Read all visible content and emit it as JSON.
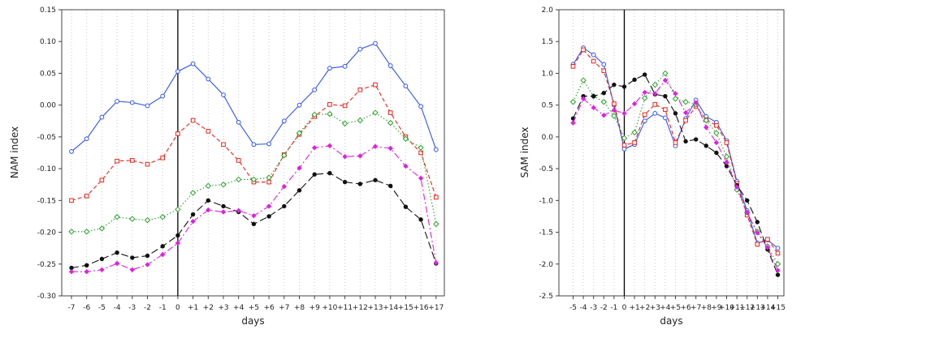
{
  "chart_data": [
    {
      "type": "line",
      "title": "",
      "xlabel": "days",
      "ylabel": "NAM index",
      "ylim": [
        -0.3,
        0.15
      ],
      "yticks": [
        -0.3,
        -0.25,
        -0.2,
        -0.15,
        -0.1,
        -0.05,
        0.0,
        0.05,
        0.1,
        0.15
      ],
      "ytick_labels": [
        "-0.30",
        "-0.25",
        "-0.20",
        "-0.15",
        "-0.10",
        "-0.05",
        "0.00",
        "0.05",
        "0.10",
        "0.15"
      ],
      "categories": [
        "-7",
        "-6",
        "-5",
        "-4",
        "-3",
        "-2",
        "-1",
        "0",
        "+1",
        "+2",
        "+3",
        "+4",
        "+5",
        "+6",
        "+7",
        "+8",
        "+9",
        "+10",
        "+11",
        "+12",
        "+13",
        "+14",
        "+15",
        "+16",
        "+17"
      ],
      "grid": "vertical dotted",
      "vline_at": "0",
      "series": [
        {
          "values": [
            -0.073,
            -0.053,
            -0.019,
            0.006,
            0.004,
            -0.001,
            0.014,
            0.053,
            0.065,
            0.041,
            0.016,
            -0.027,
            -0.062,
            -0.061,
            -0.025,
            0.0,
            0.024,
            0.058,
            0.061,
            0.088,
            0.097,
            0.062,
            0.03,
            -0.002,
            -0.07
          ],
          "color": "#3355ee",
          "marker": "circle-open",
          "dash": "solid"
        },
        {
          "values": [
            -0.15,
            -0.143,
            -0.118,
            -0.088,
            -0.087,
            -0.093,
            -0.083,
            -0.045,
            -0.024,
            -0.041,
            -0.062,
            -0.087,
            -0.121,
            -0.121,
            -0.078,
            -0.046,
            -0.018,
            0.001,
            -0.001,
            0.024,
            0.032,
            -0.012,
            -0.05,
            -0.075,
            -0.145
          ],
          "color": "#e8231c",
          "marker": "square-open",
          "dash": "dashed"
        },
        {
          "values": [
            -0.199,
            -0.199,
            -0.194,
            -0.176,
            -0.179,
            -0.181,
            -0.176,
            -0.164,
            -0.138,
            -0.127,
            -0.125,
            -0.117,
            -0.117,
            -0.114,
            -0.079,
            -0.044,
            -0.015,
            -0.014,
            -0.029,
            -0.024,
            -0.012,
            -0.028,
            -0.053,
            -0.067,
            -0.187
          ],
          "color": "#2aa02a",
          "marker": "diamond-open",
          "dash": "dotted"
        },
        {
          "values": [
            -0.256,
            -0.252,
            -0.242,
            -0.232,
            -0.24,
            -0.237,
            -0.222,
            -0.205,
            -0.172,
            -0.15,
            -0.159,
            -0.168,
            -0.187,
            -0.175,
            -0.159,
            -0.134,
            -0.109,
            -0.107,
            -0.121,
            -0.124,
            -0.118,
            -0.127,
            -0.16,
            -0.18,
            -0.249
          ],
          "color": "#111111",
          "marker": "circle-filled",
          "dash": "longdash"
        },
        {
          "values": [
            -0.262,
            -0.262,
            -0.259,
            -0.249,
            -0.259,
            -0.251,
            -0.235,
            -0.217,
            -0.183,
            -0.165,
            -0.168,
            -0.166,
            -0.174,
            -0.159,
            -0.128,
            -0.099,
            -0.067,
            -0.064,
            -0.081,
            -0.08,
            -0.065,
            -0.068,
            -0.096,
            -0.115,
            -0.248
          ],
          "color": "#dd22dd",
          "marker": "diamond-filled",
          "dash": "dashdot"
        }
      ]
    },
    {
      "type": "line",
      "title": "",
      "xlabel": "days",
      "ylabel": "SAM index",
      "ylim": [
        -2.5,
        2.0
      ],
      "yticks": [
        -2.5,
        -2.0,
        -1.5,
        -1.0,
        -0.5,
        0.0,
        0.5,
        1.0,
        1.5,
        2.0
      ],
      "ytick_labels": [
        "-2.5",
        "-2.0",
        "-1.5",
        "-1.0",
        "-0.5",
        "0.0",
        "0.5",
        "1.0",
        "1.5",
        "2.0"
      ],
      "categories": [
        "-5",
        "-4",
        "-3",
        "-2",
        "-1",
        "0",
        "+1",
        "+2",
        "+3",
        "+4",
        "+5",
        "+6",
        "+7",
        "+8",
        "+9",
        "+10",
        "+11",
        "+12",
        "+13",
        "+14",
        "+15"
      ],
      "grid": "vertical dotted",
      "vline_at": "0",
      "series": [
        {
          "values": [
            1.14,
            1.4,
            1.29,
            1.14,
            0.5,
            -0.19,
            -0.12,
            0.25,
            0.37,
            0.3,
            -0.14,
            0.29,
            0.58,
            0.32,
            0.23,
            -0.06,
            -0.7,
            -1.16,
            -1.67,
            -1.62,
            -1.75
          ],
          "color": "#3355ee",
          "marker": "circle-open",
          "dash": "solid"
        },
        {
          "values": [
            1.11,
            1.37,
            1.19,
            1.04,
            0.52,
            -0.13,
            -0.09,
            0.35,
            0.51,
            0.43,
            -0.09,
            0.26,
            0.48,
            0.27,
            0.18,
            -0.09,
            -0.73,
            -1.23,
            -1.69,
            -1.61,
            -1.83
          ],
          "color": "#e8231c",
          "marker": "square-open",
          "dash": "dashed"
        },
        {
          "values": [
            0.55,
            0.89,
            0.64,
            0.55,
            0.33,
            -0.02,
            0.07,
            0.61,
            0.82,
            1.0,
            0.6,
            0.55,
            0.51,
            0.26,
            0.06,
            -0.31,
            -0.83,
            -1.19,
            -1.49,
            -1.72,
            -2.0
          ],
          "color": "#2aa02a",
          "marker": "diamond-open",
          "dash": "dotted"
        },
        {
          "values": [
            0.29,
            0.64,
            0.64,
            0.69,
            0.82,
            0.79,
            0.9,
            0.98,
            0.67,
            0.64,
            0.37,
            -0.07,
            -0.04,
            -0.14,
            -0.25,
            -0.46,
            -0.76,
            -1.0,
            -1.34,
            -1.77,
            -2.17
          ],
          "color": "#111111",
          "marker": "circle-filled",
          "dash": "longdash"
        },
        {
          "values": [
            0.22,
            0.6,
            0.46,
            0.34,
            0.42,
            0.37,
            0.52,
            0.7,
            0.68,
            0.89,
            0.68,
            0.38,
            0.54,
            0.15,
            -0.09,
            -0.4,
            -0.79,
            -1.19,
            -1.51,
            -1.74,
            -2.1
          ],
          "color": "#dd22dd",
          "marker": "diamond-filled",
          "dash": "dashdot"
        }
      ]
    }
  ]
}
